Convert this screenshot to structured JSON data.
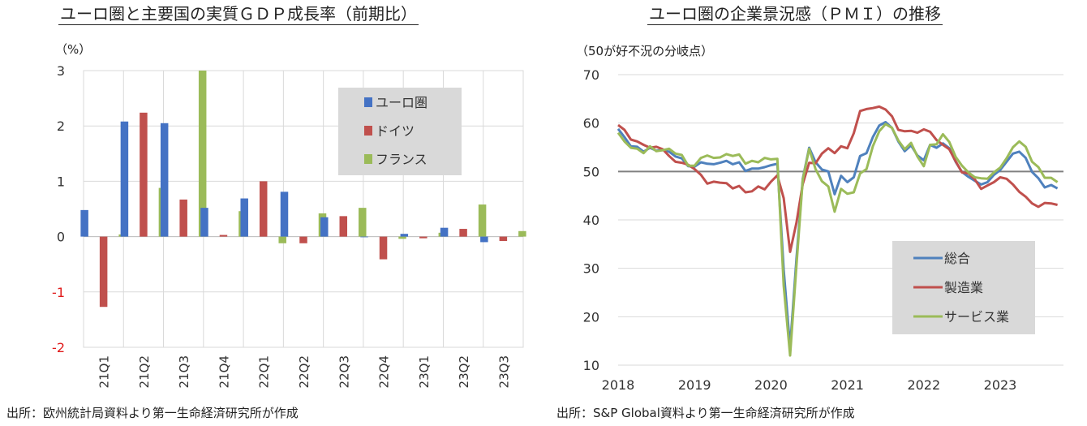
{
  "chart_data": [
    {
      "type": "bar",
      "title": "ユーロ圏と主要国の実質ＧＤＰ成長率（前期比）",
      "ylabel": "（%）",
      "ylim": [
        -2,
        3
      ],
      "yticks": [
        "3",
        "2",
        "1",
        "0",
        "-1",
        "-2"
      ],
      "categories": [
        "21Q1",
        "21Q2",
        "21Q3",
        "21Q4",
        "22Q1",
        "22Q2",
        "22Q3",
        "22Q4",
        "23Q1",
        "23Q2",
        "23Q3"
      ],
      "series": [
        {
          "name": "ユーロ圏",
          "color": "#4472c4",
          "values": [
            0.48,
            2.08,
            2.05,
            0.52,
            0.69,
            0.81,
            0.35,
            0.0,
            0.05,
            0.16,
            -0.1
          ]
        },
        {
          "name": "ドイツ",
          "color": "#c0504d",
          "values": [
            -1.27,
            2.24,
            0.67,
            0.03,
            1.0,
            -0.12,
            0.37,
            -0.41,
            -0.03,
            0.14,
            -0.08
          ]
        },
        {
          "name": "フランス",
          "color": "#9bbb59",
          "values": [
            0.04,
            0.88,
            3.0,
            0.46,
            -0.12,
            0.42,
            0.52,
            -0.04,
            0.07,
            0.58,
            0.1
          ]
        }
      ],
      "grid": true,
      "legend": "top-right",
      "source": "出所：欧州統計局資料より第一生命経済研究所が作成"
    },
    {
      "type": "line",
      "title": "ユーロ圏の企業景況感（ＰＭＩ）の推移",
      "ylabel": "（50が好不況の分岐点）",
      "ylim": [
        10,
        70
      ],
      "yticks": [
        "70",
        "60",
        "50",
        "40",
        "30",
        "20",
        "10"
      ],
      "xticks": [
        "2018",
        "2019",
        "2020",
        "2021",
        "2022",
        "2023"
      ],
      "x_start": "2018-01",
      "x_end": "2023-10",
      "reference_line": 50,
      "series": [
        {
          "name": "総合",
          "color": "#4f81bd",
          "values": [
            58.8,
            57.1,
            55.2,
            55.1,
            54.1,
            54.9,
            54.3,
            54.5,
            54.1,
            53.1,
            52.7,
            51.1,
            51.0,
            51.9,
            51.6,
            51.5,
            51.8,
            52.2,
            51.5,
            51.9,
            50.1,
            50.6,
            50.6,
            50.9,
            51.3,
            51.6,
            29.7,
            13.6,
            31.9,
            48.5,
            54.9,
            51.9,
            50.4,
            50.0,
            45.3,
            49.1,
            47.8,
            48.8,
            53.2,
            53.8,
            57.1,
            59.5,
            60.2,
            59.0,
            56.2,
            54.2,
            55.4,
            53.3,
            52.3,
            55.5,
            54.9,
            55.8,
            54.8,
            52.0,
            49.9,
            48.9,
            48.1,
            47.3,
            47.8,
            49.3,
            50.3,
            52.0,
            53.7,
            54.1,
            52.8,
            49.9,
            48.6,
            46.7,
            47.2,
            46.5
          ]
        },
        {
          "name": "製造業",
          "color": "#c0504d",
          "values": [
            59.6,
            58.6,
            56.6,
            56.2,
            55.5,
            54.9,
            55.1,
            54.6,
            53.2,
            52.0,
            51.8,
            51.4,
            50.5,
            49.3,
            47.5,
            47.9,
            47.7,
            47.6,
            46.5,
            47.0,
            45.7,
            45.9,
            46.9,
            46.3,
            47.9,
            49.2,
            44.5,
            33.4,
            39.4,
            47.4,
            51.8,
            51.7,
            53.7,
            54.8,
            53.8,
            55.2,
            54.8,
            57.9,
            62.5,
            62.9,
            63.1,
            63.4,
            62.8,
            61.4,
            58.6,
            58.3,
            58.4,
            58.0,
            58.7,
            58.2,
            56.5,
            55.5,
            54.6,
            52.1,
            49.8,
            49.6,
            48.4,
            46.4,
            47.1,
            47.8,
            48.8,
            48.5,
            47.3,
            45.8,
            44.8,
            43.4,
            42.7,
            43.5,
            43.4,
            43.1
          ]
        },
        {
          "name": "サービス業",
          "color": "#9bbb59",
          "values": [
            58.0,
            56.2,
            54.9,
            54.7,
            53.8,
            55.2,
            54.2,
            54.4,
            54.7,
            53.7,
            53.4,
            51.2,
            51.2,
            52.8,
            53.3,
            52.8,
            52.9,
            53.6,
            53.2,
            53.5,
            51.6,
            52.2,
            51.9,
            52.8,
            52.5,
            52.6,
            26.4,
            12.0,
            30.5,
            48.3,
            54.7,
            50.5,
            48.0,
            46.9,
            41.7,
            46.4,
            45.4,
            45.7,
            49.6,
            50.5,
            55.2,
            58.3,
            59.8,
            59.0,
            56.4,
            54.6,
            55.9,
            53.1,
            51.1,
            55.5,
            55.6,
            57.7,
            56.1,
            53.0,
            51.2,
            49.8,
            48.8,
            48.6,
            48.5,
            49.8,
            50.8,
            52.7,
            55.0,
            56.2,
            55.1,
            52.0,
            50.9,
            48.7,
            48.7,
            47.8
          ]
        }
      ],
      "legend": "bottom-right",
      "source": "出所：S&P Global資料より第一生命経済研究所が作成"
    }
  ]
}
